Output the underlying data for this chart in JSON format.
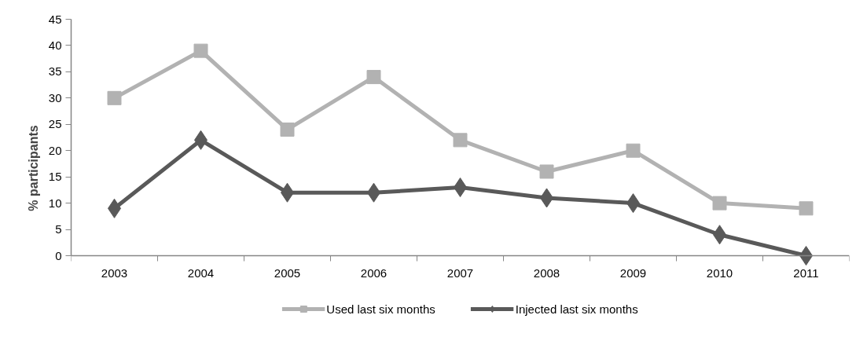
{
  "chart_data": {
    "type": "line",
    "ylabel": "% participants",
    "categories": [
      "2003",
      "2004",
      "2005",
      "2006",
      "2007",
      "2008",
      "2009",
      "2010",
      "2011"
    ],
    "series": [
      {
        "name": "Used last six months",
        "color": "#b2b2b2",
        "marker": "square",
        "values": [
          30,
          39,
          24,
          34,
          22,
          16,
          20,
          10,
          9
        ]
      },
      {
        "name": "Injected last six months",
        "color": "#595959",
        "marker": "diamond",
        "values": [
          9,
          22,
          12,
          12,
          13,
          11,
          10,
          4,
          0
        ]
      }
    ],
    "ylim": [
      0,
      45
    ],
    "yticks": [
      0,
      5,
      10,
      15,
      20,
      25,
      30,
      35,
      40,
      45
    ],
    "grid": false,
    "legend": "bottom"
  }
}
